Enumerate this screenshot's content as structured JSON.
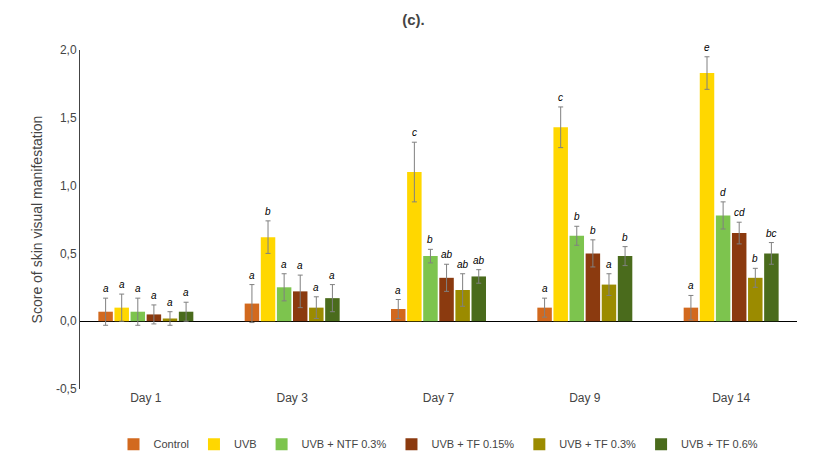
{
  "chart_data": {
    "type": "bar",
    "title": "(c).",
    "ylabel": "Score of skin visual manifestation",
    "categories": [
      "Day 1",
      "Day 3",
      "Day 7",
      "Day 9",
      "Day 14"
    ],
    "series": [
      {
        "name": "Control",
        "color": "#D2691E",
        "values": [
          0.07,
          0.13,
          0.09,
          0.1,
          0.1
        ],
        "errors": [
          0.1,
          0.14,
          0.07,
          0.07,
          0.09
        ],
        "annotations": [
          "a",
          "a",
          "a",
          "a",
          "a"
        ]
      },
      {
        "name": "UVB",
        "color": "#FFD700",
        "values": [
          0.1,
          0.62,
          1.1,
          1.43,
          1.83
        ],
        "errors": [
          0.1,
          0.12,
          0.22,
          0.15,
          0.12
        ],
        "annotations": [
          "a",
          "b",
          "c",
          "c",
          "e"
        ]
      },
      {
        "name": "UVB + NTF 0.3%",
        "color": "#7DC44E",
        "values": [
          0.07,
          0.25,
          0.48,
          0.63,
          0.78
        ],
        "errors": [
          0.1,
          0.1,
          0.05,
          0.07,
          0.1
        ],
        "annotations": [
          "a",
          "a",
          "b",
          "b",
          "d"
        ]
      },
      {
        "name": "UVB + TF 0.15%",
        "color": "#8B3A0F",
        "values": [
          0.05,
          0.22,
          0.32,
          0.5,
          0.65
        ],
        "errors": [
          0.07,
          0.12,
          0.1,
          0.1,
          0.08
        ],
        "annotations": [
          "a",
          "a",
          "ab",
          "b",
          "cd"
        ]
      },
      {
        "name": "UVB + TF 0.3%",
        "color": "#9B8B00",
        "values": [
          0.02,
          0.1,
          0.23,
          0.27,
          0.32
        ],
        "errors": [
          0.05,
          0.08,
          0.12,
          0.08,
          0.07
        ],
        "annotations": [
          "a",
          "a",
          "ab",
          "a",
          "b"
        ]
      },
      {
        "name": "UVB + TF 0.6%",
        "color": "#4A6B1C",
        "values": [
          0.07,
          0.17,
          0.33,
          0.48,
          0.5
        ],
        "errors": [
          0.07,
          0.1,
          0.05,
          0.07,
          0.08
        ],
        "annotations": [
          "a",
          "a",
          "ab",
          "b",
          "bc"
        ]
      }
    ],
    "ylim": [
      -0.5,
      2.0
    ],
    "yticks": [
      {
        "value": -0.5,
        "label": "-0,5"
      },
      {
        "value": 0.0,
        "label": "0,0"
      },
      {
        "value": 0.5,
        "label": "0,5"
      },
      {
        "value": 1.0,
        "label": "1,0"
      },
      {
        "value": 1.5,
        "label": "1,5"
      },
      {
        "value": 2.0,
        "label": "2,0"
      }
    ],
    "grid": false,
    "legend": "bottom"
  }
}
